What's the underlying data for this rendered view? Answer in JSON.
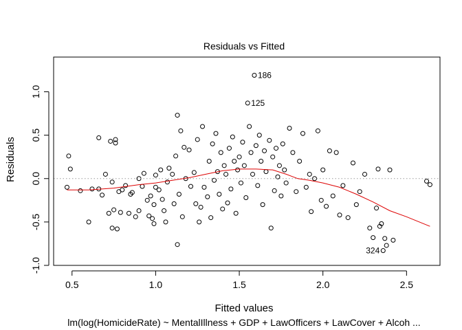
{
  "chart_data": {
    "type": "scatter",
    "title": "Residuals vs Fitted",
    "xlabel": "Fitted values",
    "ylabel": "Residuals",
    "subtitle": "lm(log(HomicideRate) ~ MentalIllness + GDP + LawOfficers + LawCover + Alcoh ...",
    "xlim": [
      0.39,
      2.7
    ],
    "ylim": [
      -1.0,
      1.4
    ],
    "xticks": [
      0.5,
      1.0,
      1.5,
      2.0,
      2.5
    ],
    "yticks": [
      -1.0,
      -0.5,
      0.0,
      0.5,
      1.0
    ],
    "xtick_labels": [
      "0.5",
      "1.0",
      "1.5",
      "2.0",
      "2.5"
    ],
    "ytick_labels": [
      "-1.0",
      "-0.5",
      "0.0",
      "0.5",
      "1.0"
    ],
    "reference_line": {
      "y": 0,
      "style": "dotted",
      "color": "#999999"
    },
    "smooth_color": "#dd0000",
    "point_color": "#000000",
    "smooth": [
      [
        0.47,
        -0.13
      ],
      [
        0.6,
        -0.13
      ],
      [
        0.75,
        -0.11
      ],
      [
        0.9,
        -0.07
      ],
      [
        1.0,
        -0.05
      ],
      [
        1.1,
        -0.02
      ],
      [
        1.2,
        0.01
      ],
      [
        1.3,
        0.05
      ],
      [
        1.4,
        0.09
      ],
      [
        1.5,
        0.11
      ],
      [
        1.6,
        0.11
      ],
      [
        1.7,
        0.1
      ],
      [
        1.78,
        0.05
      ],
      [
        1.85,
        0.0
      ],
      [
        1.92,
        -0.02
      ],
      [
        2.0,
        -0.05
      ],
      [
        2.1,
        -0.1
      ],
      [
        2.2,
        -0.18
      ],
      [
        2.3,
        -0.27
      ],
      [
        2.4,
        -0.37
      ],
      [
        2.5,
        -0.44
      ],
      [
        2.64,
        -0.55
      ]
    ],
    "labels": [
      {
        "text": "186",
        "x": 1.59,
        "y": 1.19,
        "side": "right"
      },
      {
        "text": "125",
        "x": 1.55,
        "y": 0.87,
        "side": "right"
      },
      {
        "text": "324",
        "x": 2.36,
        "y": -0.83,
        "side": "left"
      }
    ],
    "points": [
      [
        1.59,
        1.19
      ],
      [
        1.55,
        0.87
      ],
      [
        2.36,
        -0.83
      ],
      [
        0.47,
        -0.1
      ],
      [
        0.48,
        0.26
      ],
      [
        0.49,
        0.11
      ],
      [
        0.55,
        -0.14
      ],
      [
        0.6,
        -0.5
      ],
      [
        0.62,
        -0.12
      ],
      [
        0.66,
        -0.12
      ],
      [
        0.66,
        0.47
      ],
      [
        0.68,
        -0.19
      ],
      [
        0.7,
        0.05
      ],
      [
        0.72,
        -0.4
      ],
      [
        0.73,
        0.43
      ],
      [
        0.74,
        -0.04
      ],
      [
        0.74,
        -0.57
      ],
      [
        0.75,
        -0.36
      ],
      [
        0.76,
        0.41
      ],
      [
        0.76,
        0.45
      ],
      [
        0.77,
        -0.58
      ],
      [
        0.78,
        -0.15
      ],
      [
        0.79,
        -0.39
      ],
      [
        0.8,
        -0.13
      ],
      [
        0.82,
        -0.08
      ],
      [
        0.84,
        -0.4
      ],
      [
        0.85,
        -0.18
      ],
      [
        0.86,
        -0.16
      ],
      [
        0.88,
        -0.44
      ],
      [
        0.9,
        -0.37
      ],
      [
        0.9,
        0.0
      ],
      [
        0.92,
        -0.09
      ],
      [
        0.93,
        0.06
      ],
      [
        0.95,
        -0.25
      ],
      [
        0.96,
        -0.43
      ],
      [
        0.97,
        -0.2
      ],
      [
        0.98,
        -0.46
      ],
      [
        0.99,
        -0.52
      ],
      [
        0.99,
        -0.3
      ],
      [
        1.0,
        -0.1
      ],
      [
        1.0,
        0.04
      ],
      [
        1.02,
        -0.13
      ],
      [
        1.03,
        0.1
      ],
      [
        1.04,
        -0.24
      ],
      [
        1.05,
        -0.37
      ],
      [
        1.06,
        -0.5
      ],
      [
        1.07,
        -0.04
      ],
      [
        1.08,
        0.12
      ],
      [
        1.1,
        0.05
      ],
      [
        1.11,
        -0.29
      ],
      [
        1.12,
        0.26
      ],
      [
        1.13,
        -0.76
      ],
      [
        1.13,
        0.73
      ],
      [
        1.14,
        -0.18
      ],
      [
        1.15,
        0.55
      ],
      [
        1.16,
        -0.44
      ],
      [
        1.17,
        0.36
      ],
      [
        1.18,
        0.0
      ],
      [
        1.2,
        0.33
      ],
      [
        1.21,
        -0.09
      ],
      [
        1.23,
        0.07
      ],
      [
        1.24,
        -0.29
      ],
      [
        1.25,
        0.45
      ],
      [
        1.26,
        -0.5
      ],
      [
        1.27,
        -0.33
      ],
      [
        1.28,
        0.6
      ],
      [
        1.29,
        -0.1
      ],
      [
        1.31,
        -0.21
      ],
      [
        1.32,
        0.2
      ],
      [
        1.33,
        -0.45
      ],
      [
        1.34,
        0.4
      ],
      [
        1.35,
        -0.02
      ],
      [
        1.36,
        0.52
      ],
      [
        1.37,
        0.08
      ],
      [
        1.38,
        -0.18
      ],
      [
        1.39,
        0.3
      ],
      [
        1.4,
        -0.35
      ],
      [
        1.41,
        0.15
      ],
      [
        1.42,
        0.05
      ],
      [
        1.43,
        -0.28
      ],
      [
        1.44,
        0.35
      ],
      [
        1.45,
        -0.12
      ],
      [
        1.46,
        0.48
      ],
      [
        1.47,
        0.2
      ],
      [
        1.48,
        -0.4
      ],
      [
        1.49,
        0.1
      ],
      [
        1.5,
        0.25
      ],
      [
        1.51,
        -0.05
      ],
      [
        1.52,
        0.42
      ],
      [
        1.53,
        0.15
      ],
      [
        1.54,
        -0.22
      ],
      [
        1.56,
        0.6
      ],
      [
        1.57,
        0.3
      ],
      [
        1.58,
        0.05
      ],
      [
        1.6,
        0.38
      ],
      [
        1.61,
        -0.08
      ],
      [
        1.62,
        0.5
      ],
      [
        1.63,
        0.2
      ],
      [
        1.64,
        -0.3
      ],
      [
        1.65,
        0.32
      ],
      [
        1.66,
        0.08
      ],
      [
        1.68,
        0.44
      ],
      [
        1.69,
        -0.57
      ],
      [
        1.7,
        0.25
      ],
      [
        1.71,
        -0.14
      ],
      [
        1.72,
        0.35
      ],
      [
        1.73,
        0.02
      ],
      [
        1.74,
        0.15
      ],
      [
        1.75,
        -0.2
      ],
      [
        1.76,
        0.4
      ],
      [
        1.77,
        0.1
      ],
      [
        1.78,
        -0.05
      ],
      [
        1.8,
        0.58
      ],
      [
        1.82,
        0.3
      ],
      [
        1.84,
        -0.15
      ],
      [
        1.86,
        0.2
      ],
      [
        1.88,
        0.52
      ],
      [
        1.9,
        -0.1
      ],
      [
        1.92,
        0.05
      ],
      [
        1.93,
        -0.38
      ],
      [
        1.95,
        0.0
      ],
      [
        1.97,
        0.55
      ],
      [
        1.99,
        -0.25
      ],
      [
        2.0,
        0.1
      ],
      [
        2.02,
        -0.32
      ],
      [
        2.04,
        0.32
      ],
      [
        2.06,
        -0.2
      ],
      [
        2.08,
        0.3
      ],
      [
        2.1,
        -0.42
      ],
      [
        2.12,
        -0.08
      ],
      [
        2.15,
        -0.45
      ],
      [
        2.18,
        0.18
      ],
      [
        2.2,
        -0.3
      ],
      [
        2.22,
        -0.15
      ],
      [
        2.25,
        0.05
      ],
      [
        2.28,
        -0.57
      ],
      [
        2.3,
        -0.68
      ],
      [
        2.32,
        -0.34
      ],
      [
        2.33,
        0.11
      ],
      [
        2.34,
        -0.55
      ],
      [
        2.35,
        -0.52
      ],
      [
        2.37,
        -0.69
      ],
      [
        2.38,
        -0.77
      ],
      [
        2.4,
        0.1
      ],
      [
        2.42,
        -0.71
      ],
      [
        2.62,
        -0.03
      ],
      [
        2.64,
        -0.07
      ]
    ]
  }
}
